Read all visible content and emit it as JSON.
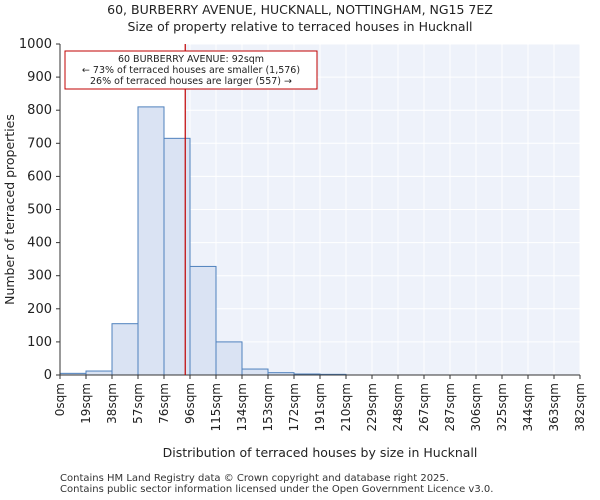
{
  "chart_data": {
    "type": "bar",
    "title_line1": "60, BURBERRY AVENUE, HUCKNALL, NOTTINGHAM, NG15 7EZ",
    "title_line2": "Size of property relative to terraced houses in Hucknall",
    "xlabel": "Distribution of terraced houses by size in Hucknall",
    "ylabel": "Number of terraced properties",
    "bin_edges": [
      0,
      19,
      38,
      57,
      76,
      96,
      115,
      134,
      153,
      172,
      191,
      210,
      229,
      248,
      267,
      287,
      306,
      325,
      344,
      363,
      382
    ],
    "tick_labels": [
      "0sqm",
      "19sqm",
      "38sqm",
      "57sqm",
      "76sqm",
      "96sqm",
      "115sqm",
      "134sqm",
      "153sqm",
      "172sqm",
      "191sqm",
      "210sqm",
      "229sqm",
      "248sqm",
      "267sqm",
      "287sqm",
      "306sqm",
      "325sqm",
      "344sqm",
      "363sqm",
      "382sqm"
    ],
    "values": [
      5,
      12,
      155,
      810,
      715,
      328,
      100,
      18,
      7,
      3,
      2,
      0,
      0,
      0,
      0,
      0,
      0,
      0,
      0,
      0
    ],
    "ylim": [
      0,
      1000
    ],
    "yticks": [
      0,
      100,
      200,
      300,
      400,
      500,
      600,
      700,
      800,
      900,
      1000
    ],
    "marker_value": 92,
    "annotation": {
      "line1": "60 BURBERRY AVENUE: 92sqm",
      "line2": "← 73% of terraced houses are smaller (1,576)",
      "line3": "26% of terraced houses are larger (557) →"
    },
    "colors": {
      "bar_fill": "#dae3f3",
      "bar_edge": "#4f81bd",
      "left_bg": "#ffffff",
      "right_bg": "#eef2fa",
      "marker": "#c00000",
      "annotation_border": "#c00000"
    }
  },
  "footer": {
    "line1": "Contains HM Land Registry data © Crown copyright and database right 2025.",
    "line2": "Contains public sector information licensed under the Open Government Licence v3.0."
  }
}
